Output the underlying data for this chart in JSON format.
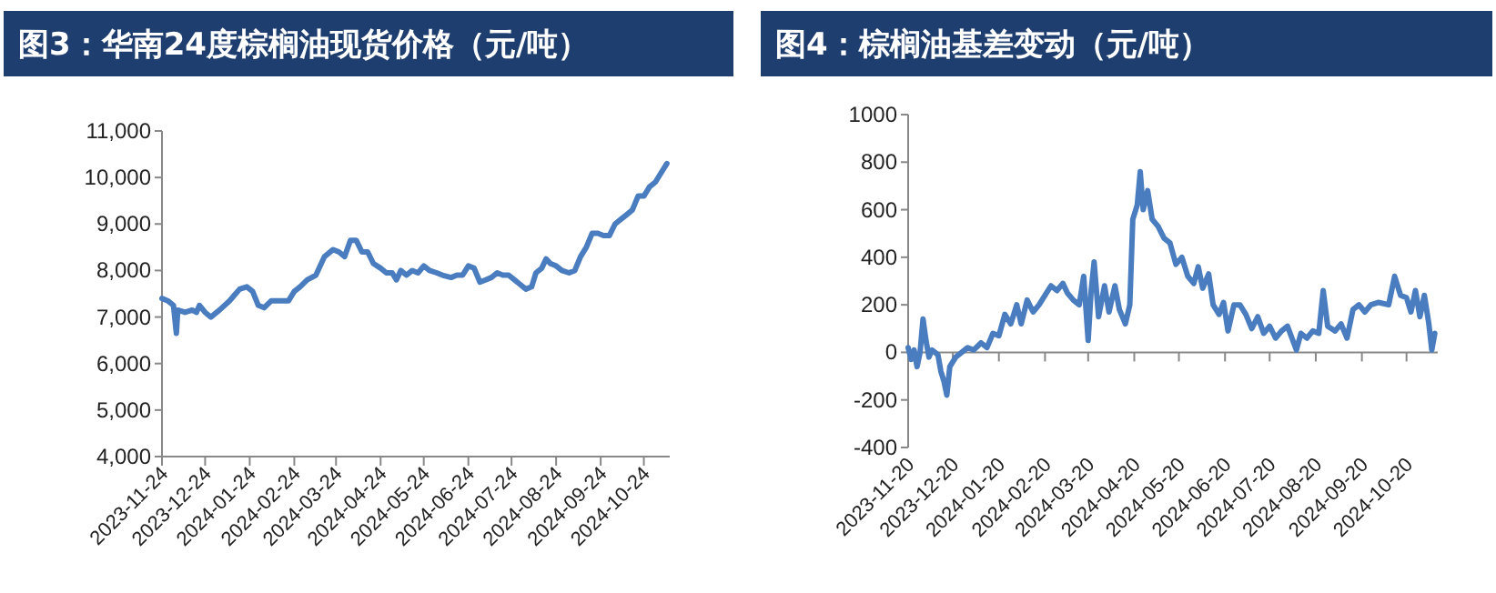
{
  "chart_data": [
    {
      "type": "line",
      "title": "图3：华南24度棕榈油现货价格（元/吨）",
      "x": [
        "2023-11-24",
        "2023-11-28",
        "2023-12-02",
        "2023-12-04",
        "2023-12-05",
        "2023-12-10",
        "2023-12-15",
        "2023-12-18",
        "2023-12-20",
        "2023-12-24",
        "2023-12-28",
        "2024-01-03",
        "2024-01-10",
        "2024-01-17",
        "2024-01-22",
        "2024-01-26",
        "2024-01-30",
        "2024-02-03",
        "2024-02-08",
        "2024-02-15",
        "2024-02-20",
        "2024-02-24",
        "2024-02-28",
        "2024-03-04",
        "2024-03-10",
        "2024-03-16",
        "2024-03-22",
        "2024-03-26",
        "2024-03-30",
        "2024-04-03",
        "2024-04-07",
        "2024-04-11",
        "2024-04-15",
        "2024-04-19",
        "2024-04-24",
        "2024-04-28",
        "2024-05-02",
        "2024-05-05",
        "2024-05-08",
        "2024-05-12",
        "2024-05-16",
        "2024-05-20",
        "2024-05-24",
        "2024-05-28",
        "2024-06-02",
        "2024-06-06",
        "2024-06-12",
        "2024-06-16",
        "2024-06-20",
        "2024-06-24",
        "2024-06-28",
        "2024-07-02",
        "2024-07-06",
        "2024-07-10",
        "2024-07-14",
        "2024-07-18",
        "2024-07-22",
        "2024-07-26",
        "2024-07-30",
        "2024-08-03",
        "2024-08-07",
        "2024-08-10",
        "2024-08-14",
        "2024-08-17",
        "2024-08-20",
        "2024-08-24",
        "2024-08-28",
        "2024-09-02",
        "2024-09-06",
        "2024-09-10",
        "2024-09-14",
        "2024-09-18",
        "2024-09-22",
        "2024-09-26",
        "2024-09-30",
        "2024-10-04",
        "2024-10-08",
        "2024-10-12",
        "2024-10-16",
        "2024-10-20",
        "2024-10-24",
        "2024-10-28",
        "2024-11-01",
        "2024-11-05",
        "2024-11-09"
      ],
      "series": [
        {
          "color": "#4a7dbf",
          "values": [
            7400,
            7350,
            7250,
            6650,
            7150,
            7100,
            7150,
            7100,
            7250,
            7100,
            7000,
            7150,
            7350,
            7600,
            7650,
            7550,
            7250,
            7200,
            7350,
            7350,
            7350,
            7550,
            7650,
            7800,
            7900,
            8300,
            8450,
            8400,
            8300,
            8650,
            8650,
            8400,
            8400,
            8150,
            8050,
            7950,
            7950,
            7800,
            8000,
            7900,
            8000,
            7950,
            8100,
            8000,
            7950,
            7900,
            7850,
            7900,
            7900,
            8100,
            8050,
            7750,
            7800,
            7850,
            7950,
            7900,
            7900,
            7800,
            7700,
            7600,
            7650,
            7950,
            8050,
            8250,
            8150,
            8100,
            8000,
            7950,
            8000,
            8300,
            8500,
            8800,
            8800,
            8750,
            8750,
            9000,
            9100,
            9200,
            9300,
            9600,
            9600,
            9800,
            9900,
            10100,
            10300
          ]
        }
      ],
      "xlim": [
        "2023-11-24",
        "2024-11-11"
      ],
      "xticks": [
        "2023-11-24",
        "2023-12-24",
        "2024-01-24",
        "2024-02-24",
        "2024-03-24",
        "2024-04-24",
        "2024-05-24",
        "2024-06-24",
        "2024-07-24",
        "2024-08-24",
        "2024-09-24",
        "2024-10-24"
      ],
      "ylim": [
        4000,
        11000
      ],
      "yticks": [
        {
          "value": 4000,
          "label": "4,000"
        },
        {
          "value": 5000,
          "label": "5,000"
        },
        {
          "value": 6000,
          "label": "6,000"
        },
        {
          "value": 7000,
          "label": "7,000"
        },
        {
          "value": 8000,
          "label": "8,000"
        },
        {
          "value": 9000,
          "label": "9,000"
        },
        {
          "value": 10000,
          "label": "10,000"
        },
        {
          "value": 11000,
          "label": "11,000"
        }
      ]
    },
    {
      "type": "line",
      "title": "图4：棕榈油基差变动（元/吨）",
      "x": [
        "2023-11-20",
        "2023-11-22",
        "2023-11-24",
        "2023-11-26",
        "2023-11-28",
        "2023-11-30",
        "2023-12-02",
        "2023-12-04",
        "2023-12-06",
        "2023-12-08",
        "2023-12-10",
        "2023-12-12",
        "2023-12-14",
        "2023-12-16",
        "2023-12-18",
        "2023-12-22",
        "2023-12-26",
        "2023-12-30",
        "2024-01-03",
        "2024-01-08",
        "2024-01-12",
        "2024-01-16",
        "2024-01-20",
        "2024-01-24",
        "2024-01-28",
        "2024-02-01",
        "2024-02-04",
        "2024-02-08",
        "2024-02-12",
        "2024-02-16",
        "2024-02-20",
        "2024-02-24",
        "2024-02-28",
        "2024-03-03",
        "2024-03-06",
        "2024-03-10",
        "2024-03-14",
        "2024-03-17",
        "2024-03-20",
        "2024-03-22",
        "2024-03-24",
        "2024-03-27",
        "2024-03-31",
        "2024-04-03",
        "2024-04-07",
        "2024-04-10",
        "2024-04-14",
        "2024-04-17",
        "2024-04-19",
        "2024-04-22",
        "2024-04-24",
        "2024-04-26",
        "2024-04-29",
        "2024-05-02",
        "2024-05-06",
        "2024-05-10",
        "2024-05-14",
        "2024-05-18",
        "2024-05-22",
        "2024-05-26",
        "2024-05-30",
        "2024-06-02",
        "2024-06-05",
        "2024-06-09",
        "2024-06-12",
        "2024-06-16",
        "2024-06-19",
        "2024-06-22",
        "2024-06-26",
        "2024-06-30",
        "2024-07-04",
        "2024-07-08",
        "2024-07-12",
        "2024-07-16",
        "2024-07-20",
        "2024-07-24",
        "2024-07-28",
        "2024-08-01",
        "2024-08-04",
        "2024-08-07",
        "2024-08-10",
        "2024-08-14",
        "2024-08-18",
        "2024-08-22",
        "2024-08-25",
        "2024-08-28",
        "2024-09-02",
        "2024-09-06",
        "2024-09-10",
        "2024-09-14",
        "2024-09-18",
        "2024-09-22",
        "2024-09-26",
        "2024-10-01",
        "2024-10-08",
        "2024-10-12",
        "2024-10-16",
        "2024-10-20",
        "2024-10-23",
        "2024-10-26",
        "2024-10-29",
        "2024-11-01",
        "2024-11-04",
        "2024-11-06",
        "2024-11-08"
      ],
      "series": [
        {
          "color": "#4a7dbf",
          "values": [
            20,
            -30,
            10,
            -60,
            0,
            140,
            50,
            -20,
            10,
            0,
            -10,
            -80,
            -120,
            -180,
            -60,
            -20,
            0,
            20,
            10,
            40,
            20,
            80,
            70,
            160,
            120,
            200,
            120,
            220,
            170,
            200,
            240,
            280,
            260,
            290,
            250,
            220,
            200,
            320,
            50,
            260,
            380,
            150,
            280,
            170,
            280,
            180,
            120,
            200,
            560,
            620,
            760,
            600,
            680,
            560,
            530,
            480,
            460,
            370,
            400,
            320,
            290,
            360,
            270,
            330,
            200,
            160,
            210,
            90,
            200,
            200,
            160,
            100,
            150,
            80,
            110,
            60,
            90,
            110,
            60,
            10,
            80,
            60,
            90,
            80,
            260,
            110,
            90,
            120,
            60,
            180,
            200,
            170,
            200,
            210,
            200,
            320,
            240,
            230,
            170,
            260,
            150,
            240,
            120,
            10,
            80
          ]
        }
      ],
      "xlim": [
        "2023-11-20",
        "2024-11-10"
      ],
      "xticks": [
        "2023-11-20",
        "2023-12-20",
        "2024-01-20",
        "2024-02-20",
        "2024-03-20",
        "2024-04-20",
        "2024-05-20",
        "2024-06-20",
        "2024-07-20",
        "2024-08-20",
        "2024-09-20",
        "2024-10-20"
      ],
      "ylim": [
        -400,
        1000
      ],
      "yticks": [
        -400,
        -200,
        0,
        200,
        400,
        600,
        800,
        1000
      ]
    }
  ]
}
